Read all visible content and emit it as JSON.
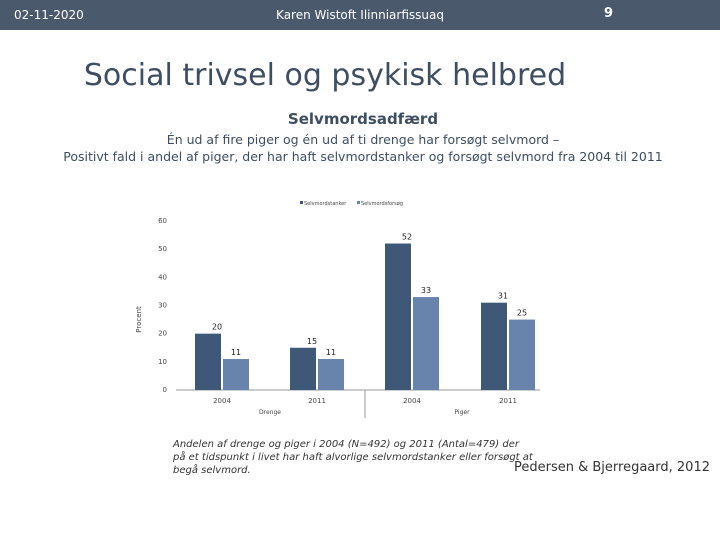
{
  "header": {
    "date": "02-11-2020",
    "author": "Karen Wistoft Ilinniarfissuaq",
    "page_number": "9"
  },
  "slide": {
    "title": "Social trivsel og psykisk helbred",
    "subtitle": "Selvmordsadfærd",
    "description_line1": "Én ud af fire piger og én ud af ti drenge har forsøgt selvmord –",
    "description_line2": "Positivt fald i andel af piger, der har haft selvmordstanker og forsøgt selvmord fra 2004 til 2011",
    "caption": "Andelen af drenge og piger i 2004 (N=492) og 2011 (Antal=479) der på et tidspunkt i livet har haft alvorlige selvmordstanker eller forsøgt at begå selvmord.",
    "citation": "Pedersen & Bjerregaard, 2012"
  },
  "chart_data": {
    "type": "bar",
    "ylabel": "Procent",
    "ylim": [
      0,
      60
    ],
    "yticks": [
      0,
      10,
      20,
      30,
      40,
      50,
      60
    ],
    "ytick_labels": [
      "0",
      "10",
      "20",
      "30",
      "40",
      "50",
      "60"
    ],
    "groups": [
      "Drenge",
      "Piger"
    ],
    "categories": [
      {
        "label": "2004",
        "group": "Drenge"
      },
      {
        "label": "2011",
        "group": "Drenge"
      },
      {
        "label": "2004",
        "group": "Piger"
      },
      {
        "label": "2011",
        "group": "Piger"
      }
    ],
    "series": [
      {
        "name": "Selvmordstanker",
        "color": "#3f5878",
        "values": [
          20,
          15,
          52,
          31
        ]
      },
      {
        "name": "Selvmordsforsøg",
        "color": "#6884ad",
        "values": [
          11,
          11,
          33,
          25
        ]
      }
    ],
    "legend_position": "top",
    "grid": false
  }
}
